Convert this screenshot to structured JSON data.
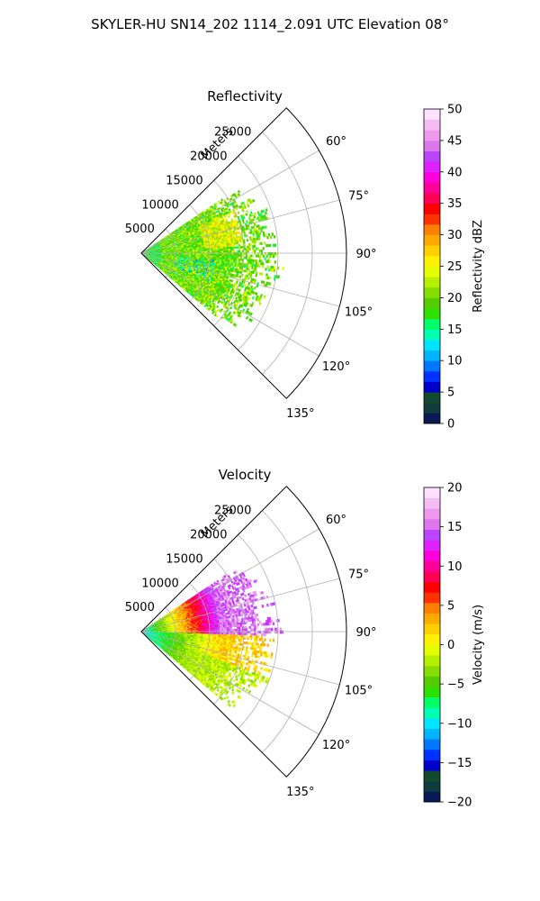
{
  "figure": {
    "title": "SKYLER-HU  SN14_202  1114_2.091 UTC Elevation 08°"
  },
  "chart_data": [
    {
      "type": "heatmap",
      "projection": "polar-sector",
      "title": "Reflectivity",
      "radial_label": "Meters",
      "azimuth_range_deg": [
        45,
        135
      ],
      "range_m": [
        0,
        30000
      ],
      "radial_ticks": [
        5000,
        10000,
        15000,
        20000,
        25000
      ],
      "radial_tick_labels": [
        "5000",
        "10000",
        "15000",
        "20000",
        "25000"
      ],
      "angle_ticks": [
        60,
        75,
        90,
        105,
        120,
        135
      ],
      "angle_tick_labels": [
        "60°",
        "75°",
        "90°",
        "105°",
        "120°",
        "135°"
      ],
      "grid": true,
      "colorbar": {
        "label": "Reflectivity dBZ",
        "range": [
          0,
          50
        ],
        "ticks": [
          0,
          5,
          10,
          15,
          20,
          25,
          30,
          35,
          40,
          45,
          50
        ],
        "tick_labels": [
          "0",
          "5",
          "10",
          "15",
          "20",
          "25",
          "30",
          "35",
          "40",
          "45",
          "50"
        ],
        "colormap": "pyart_NWSRef",
        "colors": [
          "#0a1a55",
          "#0f3d3d",
          "#114a2e",
          "#0000cc",
          "#0033ff",
          "#0077ff",
          "#00b4ff",
          "#00e5ff",
          "#00ffb0",
          "#00ff66",
          "#2de000",
          "#55cc00",
          "#88dd00",
          "#b4f000",
          "#e6ff00",
          "#fff200",
          "#ffd000",
          "#ffaa00",
          "#ff8000",
          "#ff3300",
          "#ff0000",
          "#ff0055",
          "#ff0099",
          "#ff00dd",
          "#dd22ff",
          "#bb44ff",
          "#dd77ee",
          "#ee99ee",
          "#f4bbf4",
          "#fde0fd"
        ]
      },
      "echo": {
        "azimuth_extent_deg": [
          56,
          130
        ],
        "max_range_m": 19000,
        "typical_value": 20,
        "value_spread": 4
      }
    },
    {
      "type": "heatmap",
      "projection": "polar-sector",
      "title": "Velocity",
      "radial_label": "Meters",
      "azimuth_range_deg": [
        45,
        135
      ],
      "range_m": [
        0,
        30000
      ],
      "radial_ticks": [
        5000,
        10000,
        15000,
        20000,
        25000
      ],
      "radial_tick_labels": [
        "5000",
        "10000",
        "15000",
        "20000",
        "25000"
      ],
      "angle_ticks": [
        60,
        75,
        90,
        105,
        120,
        135
      ],
      "angle_tick_labels": [
        "60°",
        "75°",
        "90°",
        "105°",
        "120°",
        "135°"
      ],
      "grid": true,
      "colorbar": {
        "label": "Velocity (m/s)",
        "range": [
          -20,
          20
        ],
        "ticks": [
          -20,
          -15,
          -10,
          -5,
          0,
          5,
          10,
          15,
          20
        ],
        "tick_labels": [
          "−20",
          "−15",
          "−10",
          "−5",
          "0",
          "5",
          "10",
          "15",
          "20"
        ],
        "colormap": "pyart_BuDRd",
        "colors": [
          "#0a1a55",
          "#0f3d3d",
          "#114a2e",
          "#0000cc",
          "#0033ff",
          "#0077ff",
          "#00b4ff",
          "#00e5ff",
          "#00ffb0",
          "#00ff66",
          "#2de000",
          "#55cc00",
          "#88dd00",
          "#b4f000",
          "#e6ff00",
          "#fff200",
          "#ffd000",
          "#ffaa00",
          "#ff8000",
          "#ff3300",
          "#ff0000",
          "#ff0055",
          "#ff0099",
          "#ff00dd",
          "#dd22ff",
          "#bb44ff",
          "#dd77ee",
          "#ee99ee",
          "#f4bbf4",
          "#fde0fd"
        ]
      },
      "echo": {
        "azimuth_extent_deg": [
          56,
          130
        ],
        "max_range_m": 19000,
        "near_value": -10,
        "far_north_value": 15,
        "far_south_value": 2
      }
    }
  ]
}
